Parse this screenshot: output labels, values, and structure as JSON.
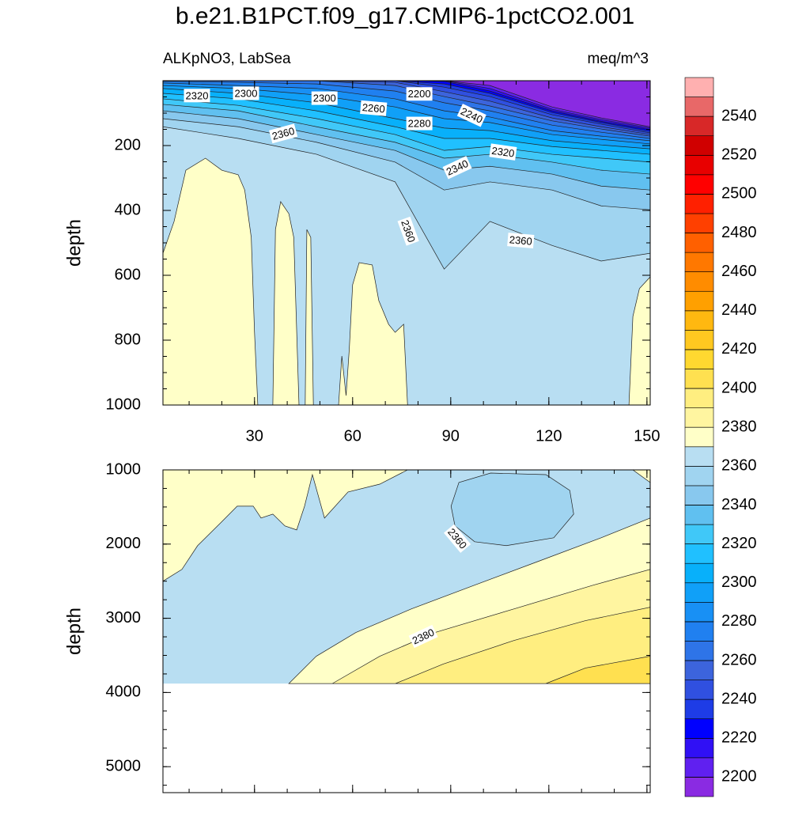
{
  "chart_data": {
    "type": "contour",
    "title": "b.e21.B1PCT.f09_g17.CMIP6-1pctCO2.001",
    "subtitle_left": "ALKpNO3, LabSea",
    "subtitle_right": "meq/m^3",
    "xlim": [
      2,
      151
    ],
    "xticks": [
      30,
      60,
      90,
      120,
      150
    ],
    "colorbar": {
      "levels": [
        2200,
        2210,
        2220,
        2230,
        2240,
        2250,
        2260,
        2270,
        2280,
        2290,
        2300,
        2310,
        2320,
        2330,
        2340,
        2350,
        2360,
        2370,
        2380,
        2390,
        2400,
        2410,
        2420,
        2430,
        2440,
        2450,
        2460,
        2470,
        2480,
        2490,
        2500,
        2510,
        2520,
        2530,
        2540,
        2550
      ],
      "colors": [
        "#8a2be2",
        "#6020f0",
        "#3010f5",
        "#0000ff",
        "#1e3ce6",
        "#3050e0",
        "#3c64dc",
        "#2e74e8",
        "#2080f0",
        "#1890f5",
        "#10a0f8",
        "#08b0fa",
        "#20c0ff",
        "#40c8f8",
        "#60c0f0",
        "#88c8ee",
        "#a0d4f0",
        "#b8def2",
        "#ffffc8",
        "#fff5a0",
        "#ffee80",
        "#ffe050",
        "#ffd830",
        "#ffc820",
        "#ffb810",
        "#ffa000",
        "#ff8c00",
        "#ff7800",
        "#ff6000",
        "#ff4000",
        "#ff2000",
        "#ff0000",
        "#e80000",
        "#d00000",
        "#d82828",
        "#e86868",
        "#ffb0b0"
      ],
      "ticks": [
        2200,
        2220,
        2240,
        2260,
        2280,
        2300,
        2320,
        2340,
        2360,
        2380,
        2400,
        2420,
        2440,
        2460,
        2480,
        2500,
        2520,
        2540
      ]
    },
    "panels": [
      {
        "ylabel": "depth",
        "ylim": [
          0,
          1000
        ],
        "y_reversed": true,
        "yticks": [
          200,
          400,
          600,
          800,
          1000
        ],
        "xtick_labels": true,
        "regions": [
          {
            "level": 2360,
            "above": true,
            "x": [
              2,
              151,
              151,
              2
            ],
            "y": [
              0,
              0,
              1000,
              1000
            ]
          },
          {
            "level": 2370,
            "above": true,
            "x": [
              2,
              5.4,
              9,
              15,
              20,
              25,
              27,
              29,
              30,
              31,
              2
            ],
            "y": [
              532,
              434,
              276,
              239,
              276,
              290,
              337,
              483,
              776,
              1000,
              1000
            ]
          },
          {
            "level": 2370,
            "above": true,
            "x": [
              35.6,
              36.4,
              38,
              40.5,
              42,
              43.6
            ],
            "y": [
              1000,
              459,
              373,
              410,
              483,
              1000
            ]
          },
          {
            "level": 2370,
            "above": true,
            "x": [
              45.5,
              46,
              47.2,
              48
            ],
            "y": [
              1000,
              459,
              483,
              1000
            ]
          },
          {
            "level": 2370,
            "above": true,
            "x": [
              55.7,
              56.7,
              58,
              59,
              60,
              62,
              66,
              68,
              71,
              73,
              75.6,
              76.8
            ],
            "y": [
              1000,
              849,
              971,
              824,
              629,
              561,
              568,
              678,
              751,
              776,
              751,
              1000
            ]
          },
          {
            "level": 2370,
            "above": true,
            "x": [
              144.5,
              145.7,
              147.7,
              151,
              151
            ],
            "y": [
              1000,
              727,
              641,
              605,
              1000
            ]
          }
        ],
        "contours": {
          "x": [
            2,
            25,
            49,
            73,
            88,
            102,
            121,
            136,
            151
          ],
          "lines": [
            {
              "level": 2360,
              "depth": [
                142,
                178,
                227,
                312,
                581,
                434,
                508,
                556,
                532
              ]
            },
            {
              "level": 2350,
              "depth": [
                117,
                142,
                190,
                251,
                337,
                312,
                337,
                386,
                398
              ]
            },
            {
              "level": 2340,
              "depth": [
                93,
                117,
                166,
                215,
                276,
                264,
                288,
                325,
                337
              ]
            },
            {
              "level": 2330,
              "depth": [
                73,
                93,
                142,
                190,
                239,
                227,
                251,
                276,
                288
              ]
            },
            {
              "level": 2320,
              "depth": [
                56,
                76,
                117,
                166,
                215,
                203,
                227,
                239,
                251
              ]
            },
            {
              "level": 2310,
              "depth": [
                39,
                56,
                93,
                142,
                178,
                178,
                203,
                215,
                227
              ]
            },
            {
              "level": 2300,
              "depth": [
                24,
                39,
                68,
                117,
                146,
                154,
                185,
                198,
                210
              ]
            },
            {
              "level": 2290,
              "depth": [
                15,
                24,
                44,
                81,
                117,
                129,
                166,
                181,
                195
              ]
            },
            {
              "level": 2280,
              "depth": [
                7,
                15,
                24,
                56,
                93,
                112,
                154,
                171,
                185
              ]
            },
            {
              "level": 2270,
              "depth": [
                2,
                5,
                10,
                32,
                68,
                93,
                137,
                159,
                178
              ]
            },
            {
              "level": 2260,
              "depth": [
                0,
                0,
                0,
                15,
                49,
                78,
                124,
                149,
                171
              ]
            },
            {
              "level": 2250,
              "depth": [
                0,
                0,
                0,
                5,
                34,
                63,
                115,
                142,
                166
              ]
            },
            {
              "level": 2240,
              "depth": [
                0,
                0,
                0,
                0,
                20,
                49,
                105,
                134,
                161
              ]
            },
            {
              "level": 2230,
              "depth": [
                0,
                0,
                0,
                0,
                10,
                39,
                98,
                129,
                156
              ]
            },
            {
              "level": 2220,
              "depth": [
                0,
                0,
                0,
                0,
                2,
                32,
                93,
                125,
                151
              ]
            },
            {
              "level": 2210,
              "depth": [
                0,
                0,
                0,
                0,
                0,
                24,
                88,
                120,
                146
              ]
            },
            {
              "level": 2200,
              "depth": [
                0,
                0,
                0,
                0,
                0,
                15,
                81,
                115,
                142
              ]
            }
          ]
        },
        "contour_labels": [
          {
            "value": 2320,
            "x": 12.4,
            "y": 46
          },
          {
            "value": 2300,
            "x": 27.4,
            "y": 39
          },
          {
            "value": 2300,
            "x": 51.4,
            "y": 54
          },
          {
            "value": 2260,
            "x": 66.4,
            "y": 85
          },
          {
            "value": 2200,
            "x": 80.4,
            "y": 41
          },
          {
            "value": 2280,
            "x": 80.4,
            "y": 132
          },
          {
            "value": 2240,
            "x": 96.4,
            "y": 107
          },
          {
            "value": 2320,
            "x": 106,
            "y": 220
          },
          {
            "value": 2340,
            "x": 92,
            "y": 268
          },
          {
            "value": 2360,
            "x": 38.8,
            "y": 163
          },
          {
            "value": 2360,
            "x": 77,
            "y": 464
          },
          {
            "value": 2360,
            "x": 111.4,
            "y": 493
          }
        ]
      },
      {
        "ylabel": "depth",
        "ylim": [
          1000,
          5350
        ],
        "y_reversed": true,
        "yticks": [
          1000,
          2000,
          3000,
          4000,
          5000
        ],
        "xtick_labels": false,
        "regions": [
          {
            "level": 2360,
            "above": true,
            "x": [
              2,
              151,
              151,
              2
            ],
            "y": [
              1000,
              1000,
              3880,
              3880
            ]
          },
          {
            "level": 2370,
            "above": true,
            "x": [
              2,
              76.8,
              68.3,
              58.6,
              51.4,
              47.7,
              45.3,
              42.9,
              39.3,
              35.6,
              32,
              29.6,
              24.7,
              19.9,
              12.6,
              7.8,
              2
            ],
            "y": [
              1000,
              1000,
              1192,
              1298,
              1649,
              1064,
              1489,
              1809,
              1755,
              1596,
              1649,
              1489,
              1489,
              1702,
              2021,
              2341,
              2500
            ]
          },
          {
            "level": 2370,
            "above": true,
            "x": [
              145.7,
              151,
              151
            ],
            "y": [
              1000,
              1000,
              1170
            ]
          },
          {
            "level": 2360,
            "above": false,
            "x": [
              90.1,
              92.5,
              102.2,
              119.1,
              126.4,
              127.6,
              121.5,
              107,
              97.3,
              91.3
            ],
            "y": [
              1489,
              1170,
              1043,
              1064,
              1277,
              1596,
              1915,
              2021,
              1968,
              1755
            ]
          },
          {
            "level": 2370,
            "above": true,
            "x": [
              40.5,
              48.9,
              61,
              78,
              97.3,
              116.7,
              136,
              151,
              151
            ],
            "y": [
              3880,
              3511,
              3192,
              2873,
              2553,
              2234,
              1915,
              1649,
              3880
            ]
          },
          {
            "level": 2380,
            "above": true,
            "x": [
              53.8,
              68.3,
              85.2,
              109.4,
              133.6,
              151,
              151
            ],
            "y": [
              3880,
              3511,
              3192,
              2873,
              2553,
              2341,
              3880
            ]
          },
          {
            "level": 2390,
            "above": true,
            "x": [
              73.1,
              87.7,
              109.4,
              131.2,
              151,
              151
            ],
            "y": [
              3880,
              3617,
              3298,
              3032,
              2851,
              3880
            ]
          },
          {
            "level": 2400,
            "above": true,
            "x": [
              119.1,
              131.2,
              151,
              151
            ],
            "y": [
              3880,
              3670,
              3511,
              3880
            ]
          }
        ],
        "contour_labels": [
          {
            "value": 2360,
            "x": 92,
            "y": 1926
          },
          {
            "value": 2380,
            "x": 81.6,
            "y": 3245
          }
        ]
      }
    ]
  }
}
